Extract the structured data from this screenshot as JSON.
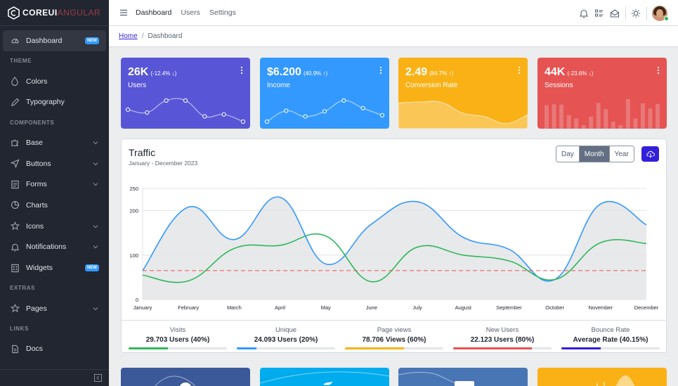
{
  "brand": {
    "name": "COREUI",
    "sub": "ANGULAR"
  },
  "sidebar": {
    "dashboard": {
      "label": "Dashboard",
      "badge": "NEW"
    },
    "theme_title": "THEME",
    "colors": "Colors",
    "typography": "Typography",
    "components_title": "COMPONENTS",
    "base": "Base",
    "buttons": "Buttons",
    "forms": "Forms",
    "charts": "Charts",
    "icons": "Icons",
    "notifications": "Notifications",
    "widgets": {
      "label": "Widgets",
      "badge": "NEW"
    },
    "extras_title": "EXTRAS",
    "pages": "Pages",
    "links_title": "LINKS",
    "docs": "Docs"
  },
  "header": {
    "nav": [
      "Dashboard",
      "Users",
      "Settings"
    ]
  },
  "breadcrumb": {
    "home": "Home",
    "sep": "/",
    "current": "Dashboard"
  },
  "widgets": [
    {
      "value": "26K",
      "delta": "(-12.4% ↓)",
      "label": "Users",
      "color": "#5856d6",
      "trend": [
        65,
        59,
        84,
        84,
        51,
        55,
        40
      ]
    },
    {
      "value": "$6.200",
      "delta": "(40.9% ↑)",
      "label": "Income",
      "color": "#3399ff",
      "trend": [
        1,
        18,
        9,
        17,
        34,
        22,
        11
      ]
    },
    {
      "value": "2.49",
      "delta": "(84.7% ↑)",
      "label": "Conversion Rate",
      "color": "#f9b115",
      "trend": [
        78,
        81,
        80,
        45,
        34,
        12,
        40
      ]
    },
    {
      "value": "44K",
      "delta": "(-23.6% ↓)",
      "label": "Sessions",
      "color": "#e55353",
      "trend": [
        78,
        81,
        80,
        45,
        34,
        12,
        40,
        85,
        65,
        23,
        12,
        98,
        34,
        84,
        67,
        82
      ]
    }
  ],
  "traffic": {
    "title": "Traffic",
    "subtitle": "January - December 2023",
    "periods": [
      "Day",
      "Month",
      "Year"
    ],
    "active_period": "Month"
  },
  "chart_data": {
    "type": "line",
    "categories": [
      "January",
      "February",
      "March",
      "April",
      "May",
      "June",
      "July",
      "August",
      "September",
      "October",
      "November",
      "December"
    ],
    "ylim": [
      0,
      250
    ],
    "yticks": [
      0,
      100,
      200,
      250
    ],
    "grid": true,
    "series": [
      {
        "values": [
          65,
          208,
          135,
          230,
          80,
          170,
          220,
          140,
          113,
          45,
          215,
          168
        ],
        "color": "#3399ff",
        "fill": "#e4e5e6"
      },
      {
        "values": [
          55,
          42,
          115,
          122,
          143,
          40,
          118,
          100,
          87,
          45,
          128,
          126
        ],
        "color": "#2eb85c"
      },
      {
        "values": [
          65,
          65,
          65,
          65,
          65,
          65,
          65,
          65,
          65,
          65,
          65,
          65
        ],
        "color": "#e55353",
        "dashed": true
      }
    ]
  },
  "stats": [
    {
      "label": "Visits",
      "value": "29.703 Users (40%)",
      "percent": 40,
      "color": "#2eb85c"
    },
    {
      "label": "Unique",
      "value": "24.093 Users (20%)",
      "percent": 20,
      "color": "#3399ff"
    },
    {
      "label": "Page views",
      "value": "78.706 Views (60%)",
      "percent": 60,
      "color": "#f9b115"
    },
    {
      "label": "New Users",
      "value": "22.123 Users (80%)",
      "percent": 80,
      "color": "#e55353"
    },
    {
      "label": "Bounce Rate",
      "value": "Average Rate (40.15%)",
      "percent": 40.15,
      "color": "#321fdb"
    }
  ],
  "social_cards": [
    {
      "name": "facebook",
      "color": "#3b5998"
    },
    {
      "name": "twitter",
      "color": "#00aced"
    },
    {
      "name": "linkedin",
      "color": "#4875b4"
    },
    {
      "name": "events",
      "color": "#f9b115"
    }
  ]
}
